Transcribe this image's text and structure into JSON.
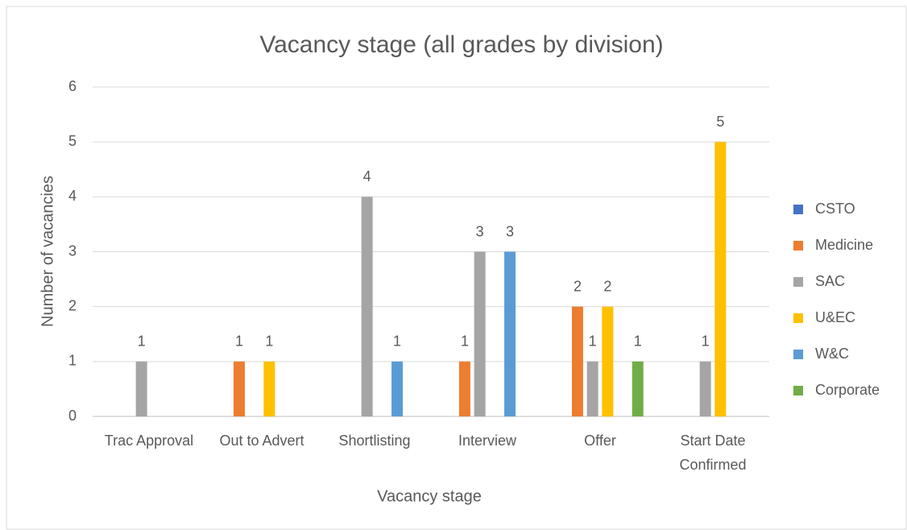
{
  "chart_data": {
    "type": "bar",
    "title": "Vacancy stage (all grades by division)",
    "x_label": "Vacancy stage",
    "y_label": "Number of vacancies",
    "categories": [
      "Trac Approval",
      "Out to Advert",
      "Shortlisting",
      "Interview",
      "Offer",
      "Start Date Confirmed"
    ],
    "series": [
      {
        "name": "CSTO",
        "color": "#4472c4",
        "values": [
          null,
          null,
          null,
          null,
          null,
          null
        ]
      },
      {
        "name": "Medicine",
        "color": "#ed7d31",
        "values": [
          null,
          1,
          null,
          1,
          2,
          null
        ]
      },
      {
        "name": "SAC",
        "color": "#a5a5a5",
        "values": [
          1,
          null,
          4,
          3,
          1,
          1
        ]
      },
      {
        "name": "U&EC",
        "color": "#ffc000",
        "values": [
          null,
          1,
          null,
          null,
          2,
          5
        ]
      },
      {
        "name": "W&C",
        "color": "#5b9bd5",
        "values": [
          null,
          null,
          1,
          3,
          null,
          null
        ]
      },
      {
        "name": "Corporate",
        "color": "#70ad47",
        "values": [
          null,
          null,
          null,
          null,
          1,
          null
        ]
      }
    ],
    "ylim": [
      0,
      6
    ],
    "yticks": [
      0,
      1,
      2,
      3,
      4,
      5,
      6
    ],
    "grid": true,
    "legend": "right"
  }
}
